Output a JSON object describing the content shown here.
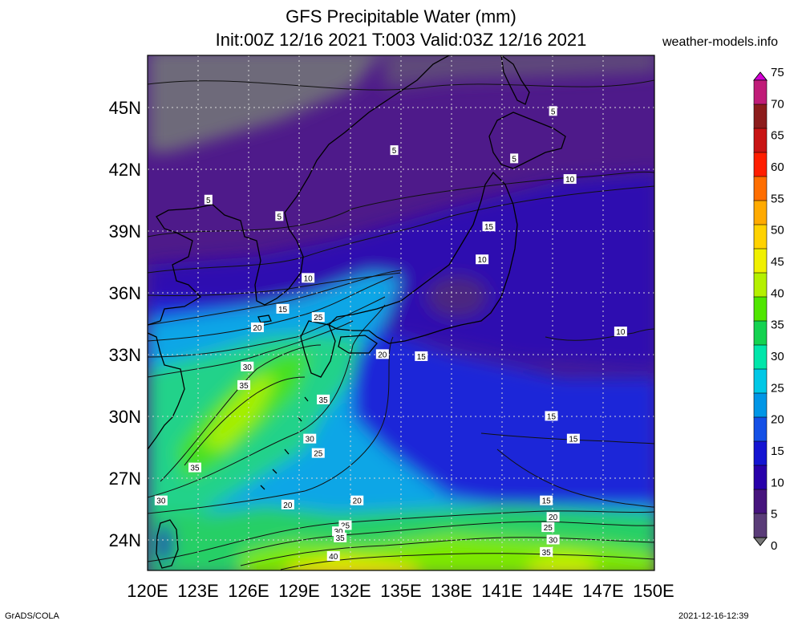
{
  "title_line1": "GFS Precipitable Water (mm)",
  "title_line2": "Init:00Z 12/16 2021 T:003 Valid:03Z 12/16 2021",
  "site": "weather-models.info",
  "footer_left": "GrADS/COLA",
  "footer_right": "2021-12-16-12:39",
  "map": {
    "lon_range": [
      120,
      150
    ],
    "lat_range": [
      22.5,
      47.5
    ],
    "lon_ticks": [
      "120E",
      "123E",
      "126E",
      "129E",
      "132E",
      "135E",
      "138E",
      "141E",
      "144E",
      "147E",
      "150E"
    ],
    "lat_ticks": [
      "24N",
      "27N",
      "30N",
      "33N",
      "36N",
      "39N",
      "42N",
      "45N"
    ],
    "grid": true,
    "contour_labels": [
      {
        "text": "5",
        "lon": 144.0,
        "lat": 44.8
      },
      {
        "text": "5",
        "lon": 134.6,
        "lat": 42.9
      },
      {
        "text": "5",
        "lon": 141.7,
        "lat": 42.5
      },
      {
        "text": "5",
        "lon": 123.6,
        "lat": 40.5
      },
      {
        "text": "5",
        "lon": 127.8,
        "lat": 39.7
      },
      {
        "text": "10",
        "lon": 145.0,
        "lat": 41.5
      },
      {
        "text": "15",
        "lon": 140.2,
        "lat": 39.2
      },
      {
        "text": "10",
        "lon": 139.8,
        "lat": 37.6
      },
      {
        "text": "10",
        "lon": 129.5,
        "lat": 36.7
      },
      {
        "text": "15",
        "lon": 128.0,
        "lat": 35.2
      },
      {
        "text": "25",
        "lon": 130.1,
        "lat": 34.8
      },
      {
        "text": "20",
        "lon": 126.5,
        "lat": 34.3
      },
      {
        "text": "20",
        "lon": 133.9,
        "lat": 33.0
      },
      {
        "text": "15",
        "lon": 136.2,
        "lat": 32.9
      },
      {
        "text": "10",
        "lon": 148.0,
        "lat": 34.1
      },
      {
        "text": "30",
        "lon": 125.9,
        "lat": 32.4
      },
      {
        "text": "35",
        "lon": 125.7,
        "lat": 31.5
      },
      {
        "text": "35",
        "lon": 130.4,
        "lat": 30.8
      },
      {
        "text": "15",
        "lon": 143.9,
        "lat": 30.0
      },
      {
        "text": "15",
        "lon": 145.2,
        "lat": 28.9
      },
      {
        "text": "30",
        "lon": 129.6,
        "lat": 28.9
      },
      {
        "text": "25",
        "lon": 130.1,
        "lat": 28.2
      },
      {
        "text": "35",
        "lon": 122.8,
        "lat": 27.5
      },
      {
        "text": "30",
        "lon": 120.8,
        "lat": 25.9
      },
      {
        "text": "20",
        "lon": 128.3,
        "lat": 25.7
      },
      {
        "text": "20",
        "lon": 132.4,
        "lat": 25.9
      },
      {
        "text": "15",
        "lon": 143.6,
        "lat": 25.9
      },
      {
        "text": "20",
        "lon": 144.0,
        "lat": 25.1
      },
      {
        "text": "25",
        "lon": 131.7,
        "lat": 24.7
      },
      {
        "text": "30",
        "lon": 131.3,
        "lat": 24.4
      },
      {
        "text": "35",
        "lon": 131.4,
        "lat": 24.1
      },
      {
        "text": "25",
        "lon": 143.7,
        "lat": 24.6
      },
      {
        "text": "30",
        "lon": 144.0,
        "lat": 24.0
      },
      {
        "text": "35",
        "lon": 143.6,
        "lat": 23.4
      },
      {
        "text": "40",
        "lon": 131.0,
        "lat": 23.2
      }
    ]
  },
  "colorbar": {
    "labels": [
      "75",
      "70",
      "65",
      "60",
      "55",
      "50",
      "45",
      "40",
      "35",
      "30",
      "25",
      "20",
      "15",
      "10",
      "5",
      "0"
    ],
    "colors": [
      "#d400d4",
      "#c01c78",
      "#8c1c1c",
      "#c81414",
      "#ff1e00",
      "#ff6e00",
      "#ffaa00",
      "#ffd200",
      "#f0f000",
      "#b4f000",
      "#50e600",
      "#14d250",
      "#00e6aa",
      "#00c8e6",
      "#0096e6",
      "#1450e6",
      "#1414d2",
      "#2800aa",
      "#46147d",
      "#5a3c78",
      "#787878"
    ]
  }
}
